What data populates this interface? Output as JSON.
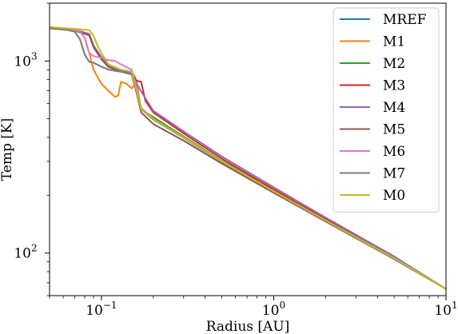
{
  "chart_data": {
    "type": "line",
    "title": "",
    "xlabel": "Radius [AU]",
    "ylabel": "Temp [K]",
    "xscale": "log",
    "yscale": "log",
    "xlim": [
      0.05,
      10
    ],
    "ylim": [
      60,
      2000
    ],
    "grid": false,
    "legend_position": "top-right",
    "x_ticks": [
      {
        "value": 0.1,
        "label": "10",
        "exp": "−1"
      },
      {
        "value": 1,
        "label": "10",
        "exp": "0"
      },
      {
        "value": 10,
        "label": "10",
        "exp": "1"
      }
    ],
    "y_ticks": [
      {
        "value": 100,
        "label": "10",
        "exp": "2"
      },
      {
        "value": 1000,
        "label": "10",
        "exp": "3"
      }
    ],
    "series": [
      {
        "name": "MREF",
        "color": "#1f77b4",
        "points": [
          [
            0.05,
            1500
          ],
          [
            0.06,
            1470
          ],
          [
            0.07,
            1420
          ],
          [
            0.075,
            1300
          ],
          [
            0.08,
            1080
          ],
          [
            0.085,
            990
          ],
          [
            0.09,
            980
          ],
          [
            0.1,
            935
          ],
          [
            0.11,
            900
          ],
          [
            0.13,
            880
          ],
          [
            0.15,
            860
          ],
          [
            0.16,
            700
          ],
          [
            0.17,
            560
          ],
          [
            0.2,
            500
          ],
          [
            0.3,
            400
          ],
          [
            0.5,
            300
          ],
          [
            1,
            210
          ],
          [
            2,
            148
          ],
          [
            5,
            94
          ],
          [
            10,
            65
          ]
        ]
      },
      {
        "name": "M1",
        "color": "#ff7f0e",
        "points": [
          [
            0.05,
            1480
          ],
          [
            0.06,
            1460
          ],
          [
            0.075,
            1420
          ],
          [
            0.08,
            1320
          ],
          [
            0.085,
            1100
          ],
          [
            0.09,
            900
          ],
          [
            0.1,
            760
          ],
          [
            0.11,
            700
          ],
          [
            0.12,
            650
          ],
          [
            0.125,
            660
          ],
          [
            0.13,
            780
          ],
          [
            0.14,
            760
          ],
          [
            0.15,
            720
          ],
          [
            0.16,
            780
          ],
          [
            0.17,
            560
          ],
          [
            0.2,
            500
          ],
          [
            0.3,
            400
          ],
          [
            0.5,
            300
          ],
          [
            1,
            210
          ],
          [
            2,
            148
          ],
          [
            5,
            94
          ],
          [
            10,
            65
          ]
        ]
      },
      {
        "name": "M2",
        "color": "#2ca02c",
        "points": [
          [
            0.05,
            1500
          ],
          [
            0.07,
            1460
          ],
          [
            0.085,
            1380
          ],
          [
            0.09,
            1200
          ],
          [
            0.1,
            1050
          ],
          [
            0.11,
            950
          ],
          [
            0.13,
            900
          ],
          [
            0.15,
            860
          ],
          [
            0.16,
            690
          ],
          [
            0.17,
            560
          ],
          [
            0.2,
            510
          ],
          [
            0.3,
            405
          ],
          [
            0.5,
            302
          ],
          [
            1,
            212
          ],
          [
            2,
            149
          ],
          [
            5,
            94
          ],
          [
            10,
            65
          ]
        ]
      },
      {
        "name": "M3",
        "color": "#d62728",
        "points": [
          [
            0.05,
            1500
          ],
          [
            0.07,
            1460
          ],
          [
            0.085,
            1380
          ],
          [
            0.09,
            1200
          ],
          [
            0.1,
            1050
          ],
          [
            0.11,
            950
          ],
          [
            0.13,
            900
          ],
          [
            0.15,
            880
          ],
          [
            0.16,
            790
          ],
          [
            0.17,
            780
          ],
          [
            0.18,
            620
          ],
          [
            0.2,
            540
          ],
          [
            0.3,
            420
          ],
          [
            0.5,
            310
          ],
          [
            1,
            215
          ],
          [
            2,
            150
          ],
          [
            5,
            95
          ],
          [
            10,
            65
          ]
        ]
      },
      {
        "name": "M4",
        "color": "#9467bd",
        "points": [
          [
            0.05,
            1500
          ],
          [
            0.07,
            1460
          ],
          [
            0.085,
            1380
          ],
          [
            0.09,
            1200
          ],
          [
            0.1,
            1050
          ],
          [
            0.11,
            950
          ],
          [
            0.13,
            900
          ],
          [
            0.15,
            870
          ],
          [
            0.16,
            760
          ],
          [
            0.18,
            640
          ],
          [
            0.2,
            550
          ],
          [
            0.3,
            430
          ],
          [
            0.5,
            318
          ],
          [
            1,
            220
          ],
          [
            2,
            153
          ],
          [
            5,
            96
          ],
          [
            10,
            65
          ]
        ]
      },
      {
        "name": "M5",
        "color": "#8c564b",
        "points": [
          [
            0.05,
            1480
          ],
          [
            0.07,
            1440
          ],
          [
            0.085,
            1360
          ],
          [
            0.09,
            1180
          ],
          [
            0.1,
            1020
          ],
          [
            0.11,
            930
          ],
          [
            0.13,
            880
          ],
          [
            0.15,
            850
          ],
          [
            0.16,
            680
          ],
          [
            0.17,
            540
          ],
          [
            0.2,
            470
          ],
          [
            0.3,
            385
          ],
          [
            0.5,
            292
          ],
          [
            1,
            206
          ],
          [
            2,
            146
          ],
          [
            5,
            93
          ],
          [
            10,
            65
          ]
        ]
      },
      {
        "name": "M6",
        "color": "#e377c2",
        "points": [
          [
            0.05,
            1500
          ],
          [
            0.06,
            1470
          ],
          [
            0.075,
            1430
          ],
          [
            0.08,
            1320
          ],
          [
            0.085,
            1100
          ],
          [
            0.09,
            1060
          ],
          [
            0.1,
            1040
          ],
          [
            0.11,
            1010
          ],
          [
            0.12,
            1000
          ],
          [
            0.13,
            960
          ],
          [
            0.15,
            900
          ],
          [
            0.16,
            720
          ],
          [
            0.17,
            570
          ],
          [
            0.2,
            500
          ],
          [
            0.3,
            400
          ],
          [
            0.5,
            300
          ],
          [
            1,
            210
          ],
          [
            2,
            148
          ],
          [
            5,
            94
          ],
          [
            10,
            65
          ]
        ]
      },
      {
        "name": "M7",
        "color": "#7f7f7f",
        "points": [
          [
            0.05,
            1500
          ],
          [
            0.06,
            1470
          ],
          [
            0.07,
            1420
          ],
          [
            0.075,
            1300
          ],
          [
            0.08,
            1080
          ],
          [
            0.085,
            990
          ],
          [
            0.09,
            980
          ],
          [
            0.1,
            935
          ],
          [
            0.11,
            900
          ],
          [
            0.13,
            880
          ],
          [
            0.15,
            855
          ],
          [
            0.16,
            690
          ],
          [
            0.17,
            560
          ],
          [
            0.2,
            495
          ],
          [
            0.3,
            398
          ],
          [
            0.5,
            298
          ],
          [
            1,
            209
          ],
          [
            2,
            147
          ],
          [
            5,
            93
          ],
          [
            10,
            65
          ]
        ]
      },
      {
        "name": "M0",
        "color": "#bcbd22",
        "points": [
          [
            0.05,
            1500
          ],
          [
            0.07,
            1470
          ],
          [
            0.085,
            1450
          ],
          [
            0.09,
            1350
          ],
          [
            0.095,
            1200
          ],
          [
            0.1,
            1100
          ],
          [
            0.11,
            960
          ],
          [
            0.13,
            900
          ],
          [
            0.15,
            880
          ],
          [
            0.16,
            700
          ],
          [
            0.17,
            560
          ],
          [
            0.2,
            500
          ],
          [
            0.3,
            400
          ],
          [
            0.5,
            300
          ],
          [
            1,
            210
          ],
          [
            2,
            148
          ],
          [
            5,
            94
          ],
          [
            10,
            65
          ]
        ]
      }
    ]
  }
}
